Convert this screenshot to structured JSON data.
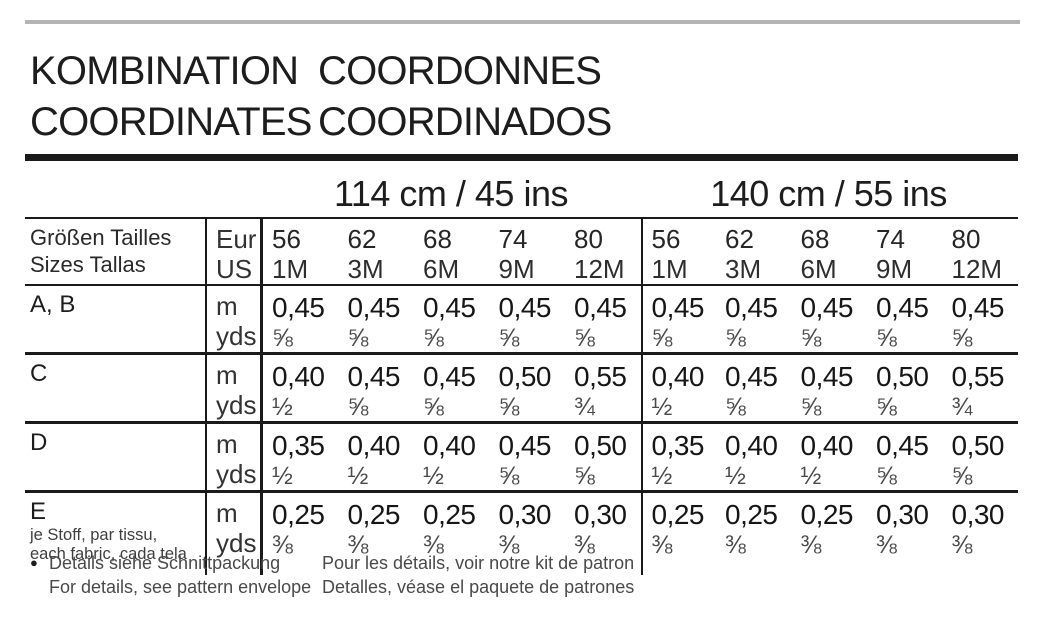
{
  "title": {
    "row1_left": "KOMBINATION",
    "row1_right": "COORDONNES",
    "row2_left": "COORDINATES",
    "row2_right": "COORDINADOS"
  },
  "table": {
    "width_headers": [
      "114 cm / 45 ins",
      "140 cm / 55 ins"
    ],
    "size_header": {
      "label_top": "Größen Tailles",
      "label_bottom": "Sizes Tallas",
      "unit_top": "Eur",
      "unit_bottom": "US",
      "cells": [
        {
          "eur": "56",
          "us": "1M"
        },
        {
          "eur": "62",
          "us": "3M"
        },
        {
          "eur": "68",
          "us": "6M"
        },
        {
          "eur": "74",
          "us": "9M"
        },
        {
          "eur": "80",
          "us": "12M"
        },
        {
          "eur": "56",
          "us": "1M"
        },
        {
          "eur": "62",
          "us": "3M"
        },
        {
          "eur": "68",
          "us": "6M"
        },
        {
          "eur": "74",
          "us": "9M"
        },
        {
          "eur": "80",
          "us": "12M"
        }
      ]
    },
    "rows": [
      {
        "label": "A, B",
        "sublines": [],
        "unit_top": "m",
        "unit_bottom": "yds",
        "cells": [
          {
            "m": "0,45",
            "yds": "⅝"
          },
          {
            "m": "0,45",
            "yds": "⅝"
          },
          {
            "m": "0,45",
            "yds": "⅝"
          },
          {
            "m": "0,45",
            "yds": "⅝"
          },
          {
            "m": "0,45",
            "yds": "⅝"
          },
          {
            "m": "0,45",
            "yds": "⅝"
          },
          {
            "m": "0,45",
            "yds": "⅝"
          },
          {
            "m": "0,45",
            "yds": "⅝"
          },
          {
            "m": "0,45",
            "yds": "⅝"
          },
          {
            "m": "0,45",
            "yds": "⅝"
          }
        ]
      },
      {
        "label": "C",
        "sublines": [],
        "unit_top": "m",
        "unit_bottom": "yds",
        "cells": [
          {
            "m": "0,40",
            "yds": "½"
          },
          {
            "m": "0,45",
            "yds": "⅝"
          },
          {
            "m": "0,45",
            "yds": "⅝"
          },
          {
            "m": "0,50",
            "yds": "⅝"
          },
          {
            "m": "0,55",
            "yds": "¾"
          },
          {
            "m": "0,40",
            "yds": "½"
          },
          {
            "m": "0,45",
            "yds": "⅝"
          },
          {
            "m": "0,45",
            "yds": "⅝"
          },
          {
            "m": "0,50",
            "yds": "⅝"
          },
          {
            "m": "0,55",
            "yds": "¾"
          }
        ]
      },
      {
        "label": "D",
        "sublines": [],
        "unit_top": "m",
        "unit_bottom": "yds",
        "cells": [
          {
            "m": "0,35",
            "yds": "½"
          },
          {
            "m": "0,40",
            "yds": "½"
          },
          {
            "m": "0,40",
            "yds": "½"
          },
          {
            "m": "0,45",
            "yds": "⅝"
          },
          {
            "m": "0,50",
            "yds": "⅝"
          },
          {
            "m": "0,35",
            "yds": "½"
          },
          {
            "m": "0,40",
            "yds": "½"
          },
          {
            "m": "0,40",
            "yds": "½"
          },
          {
            "m": "0,45",
            "yds": "⅝"
          },
          {
            "m": "0,50",
            "yds": "⅝"
          }
        ]
      },
      {
        "label": "E",
        "sublines": [
          "je Stoff, par tissu,",
          "each fabric, cada tela"
        ],
        "unit_top": "m",
        "unit_bottom": "yds",
        "cells": [
          {
            "m": "0,25",
            "yds": "⅜"
          },
          {
            "m": "0,25",
            "yds": "⅜"
          },
          {
            "m": "0,25",
            "yds": "⅜"
          },
          {
            "m": "0,30",
            "yds": "⅜"
          },
          {
            "m": "0,30",
            "yds": "⅜"
          },
          {
            "m": "0,25",
            "yds": "⅜"
          },
          {
            "m": "0,25",
            "yds": "⅜"
          },
          {
            "m": "0,25",
            "yds": "⅜"
          },
          {
            "m": "0,30",
            "yds": "⅜"
          },
          {
            "m": "0,30",
            "yds": "⅜"
          }
        ]
      }
    ]
  },
  "footer": {
    "bullet": "●",
    "line1_left": "Details siehe Schnittpackung",
    "line1_right": "Pour les détails, voir notre kit de patron",
    "line2_left": "For details, see pattern envelope",
    "line2_right": "Detalles, véase el paquete de patrones"
  },
  "colors": {
    "text": "#1d1d1d",
    "muted": "#4a4a4a",
    "rule_gray": "#b4b4b4",
    "rule_black": "#1a1a1a"
  }
}
